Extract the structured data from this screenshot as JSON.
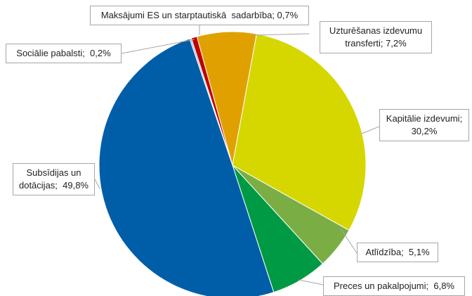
{
  "chart_data": {
    "type": "pie",
    "values": [
      0.7,
      7.2,
      30.2,
      5.1,
      6.8,
      49.8,
      0.2
    ],
    "value_labels": [
      "Maksājumi ES un starptautiskā  sadarbība; 0,7%",
      "Uzturēšanas izdevumu transferti; 7,2%",
      "Kapitālie izdevumi; 30,2%",
      "Atlīdzība;  5,1%",
      "Preces un pakalpojumi;  6,8%",
      "Subsīdijas un dotācijas;  49,8%",
      "Sociālie pabalsti;  0,2%"
    ],
    "colors": [
      "#c00000",
      "#e0a100",
      "#d6d600",
      "#7aae45",
      "#009944",
      "#005ea8",
      "#9fb6cf"
    ]
  }
}
